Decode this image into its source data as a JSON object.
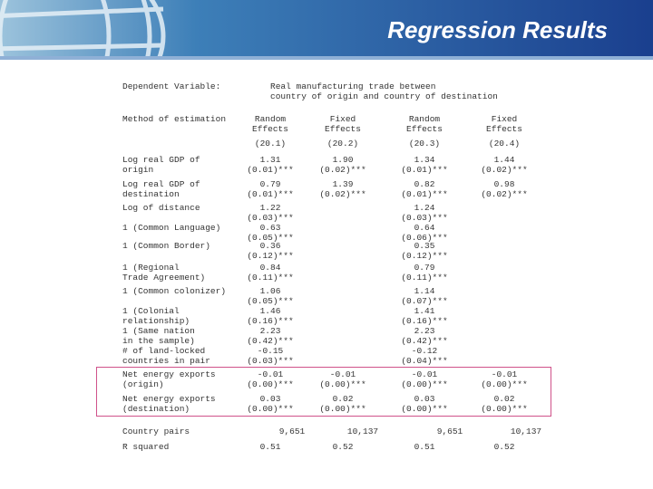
{
  "header": {
    "title": "Regression Results"
  },
  "table": {
    "dependent": {
      "label": "Dependent Variable:",
      "value": [
        "Real manufacturing trade between",
        "country of origin and country of destination"
      ]
    },
    "method": {
      "label": "Method of estimation",
      "columns": [
        [
          "Random",
          "Effects"
        ],
        [
          "Fixed",
          "Effects"
        ],
        [
          "Random",
          "Effects"
        ],
        [
          "Fixed",
          "Effects"
        ]
      ]
    },
    "models": [
      "(20.1)",
      "(20.2)",
      "(20.3)",
      "(20.4)"
    ],
    "rows": [
      {
        "label": [
          "Log real GDP of",
          "origin"
        ],
        "cells": [
          {
            "coef": "1.31",
            "se": "(0.01)***"
          },
          {
            "coef": "1.90",
            "se": "(0.02)***"
          },
          {
            "coef": "1.34",
            "se": "(0.01)***"
          },
          {
            "coef": "1.44",
            "se": "(0.02)***"
          }
        ]
      },
      {
        "label": [
          "Log real GDP of",
          "destination"
        ],
        "cells": [
          {
            "coef": "0.79",
            "se": "(0.01)***"
          },
          {
            "coef": "1.39",
            "se": "(0.02)***"
          },
          {
            "coef": "0.82",
            "se": "(0.01)***"
          },
          {
            "coef": "0.98",
            "se": "(0.02)***"
          }
        ]
      },
      {
        "label": [
          "Log of distance"
        ],
        "cells": [
          {
            "coef": "1.22",
            "se": "(0.03)***"
          },
          null,
          {
            "coef": "1.24",
            "se": "(0.03)***"
          },
          null
        ]
      },
      {
        "label": [
          "1 (Common Language)"
        ],
        "cells": [
          {
            "coef": "0.63",
            "se": "(0.05)***"
          },
          null,
          {
            "coef": "0.64",
            "se": "(0.06)***"
          },
          null
        ]
      },
      {
        "label": [
          "1 (Common Border)"
        ],
        "cells": [
          {
            "coef": "0.36",
            "se": "(0.12)***"
          },
          null,
          {
            "coef": "0.35",
            "se": "(0.12)***"
          },
          null
        ]
      },
      {
        "label": [
          "1 (Regional",
          "Trade Agreement)"
        ],
        "cells": [
          {
            "coef": "0.84",
            "se": "(0.11)***"
          },
          null,
          {
            "coef": "0.79",
            "se": "(0.11)***"
          },
          null
        ]
      },
      {
        "label": [
          "1 (Common colonizer)"
        ],
        "cells": [
          {
            "coef": "1.06",
            "se": "(0.05)***"
          },
          null,
          {
            "coef": "1.14",
            "se": "(0.07)***"
          },
          null
        ]
      },
      {
        "label": [
          "1 (Colonial",
          "relationship)"
        ],
        "cells": [
          {
            "coef": "1.46",
            "se": "(0.16)***"
          },
          null,
          {
            "coef": "1.41",
            "se": "(0.16)***"
          },
          null
        ]
      },
      {
        "label": [
          "1 (Same nation",
          "in the sample)"
        ],
        "cells": [
          {
            "coef": "2.23",
            "se": "(0.42)***"
          },
          null,
          {
            "coef": "2.23",
            "se": "(0.42)***"
          },
          null
        ]
      },
      {
        "label": [
          "# of land-locked",
          "countries in pair"
        ],
        "cells": [
          {
            "coef": "-0.15",
            "se": "(0.03)***"
          },
          null,
          {
            "coef": "-0.12",
            "se": "(0.04)***"
          },
          null
        ]
      },
      {
        "label": [
          "Net energy exports",
          "(origin)"
        ],
        "cells": [
          {
            "coef": "-0.01",
            "se": "(0.00)***"
          },
          {
            "coef": "-0.01",
            "se": "(0.00)***"
          },
          {
            "coef": "-0.01",
            "se": "(0.00)***"
          },
          {
            "coef": "-0.01",
            "se": "(0.00)***"
          }
        ]
      },
      {
        "label": [
          "Net energy exports",
          "(destination)"
        ],
        "cells": [
          {
            "coef": "0.03",
            "se": "(0.00)***"
          },
          {
            "coef": "0.02",
            "se": "(0.00)***"
          },
          {
            "coef": "0.03",
            "se": "(0.00)***"
          },
          {
            "coef": "0.02",
            "se": "(0.00)***"
          }
        ]
      }
    ],
    "summary": [
      {
        "label": "Country pairs",
        "values": [
          "9,651",
          "10,137",
          "9,651",
          "10,137"
        ]
      },
      {
        "label": "R squared",
        "values": [
          "0.51",
          "0.52",
          "0.51",
          "0.52"
        ]
      }
    ]
  }
}
